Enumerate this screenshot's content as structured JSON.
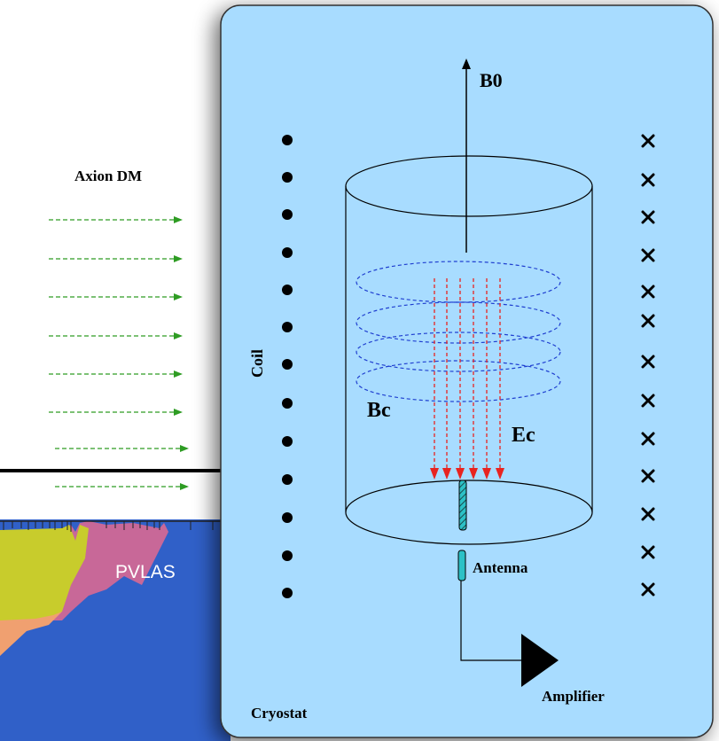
{
  "labels": {
    "axion_dm": "Axion DM",
    "b0": "B0",
    "coil": "Coil",
    "bc": "Bc",
    "ec": "Ec",
    "antenna": "Antenna",
    "amplifier": "Amplifier",
    "cryostat": "Cryostat",
    "pvlas": "PVLAS"
  },
  "colors": {
    "panel_fill": "#a8dcff",
    "panel_stroke": "#333333",
    "axion_arrows": "#2e9c23",
    "field_lines_e": "#e8231f",
    "field_loops_b": "#1f3fd0",
    "antenna_fill": "#2cc1c6",
    "plot_blue": "#3060c8",
    "plot_olive": "#c8cc2c",
    "plot_pink": "#c86898",
    "plot_orange": "#f0a070"
  },
  "icons": {
    "coil_left_marker": "dot-out-of-page",
    "coil_right_marker": "cross-into-page",
    "amplifier": "triangle-amplifier-symbol"
  }
}
